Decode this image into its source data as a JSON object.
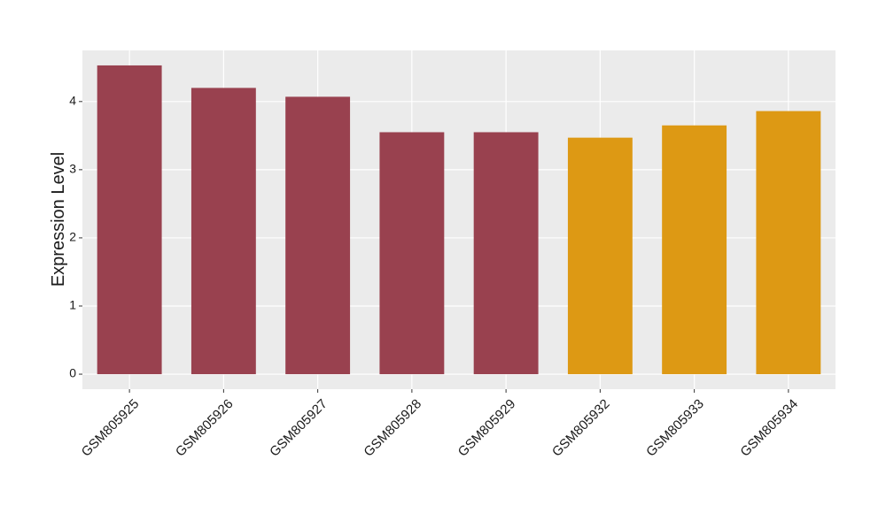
{
  "chart_data": {
    "type": "bar",
    "y_label": "Expression Level",
    "categories": [
      "GSM805925",
      "GSM805926",
      "GSM805927",
      "GSM805928",
      "GSM805929",
      "GSM805932",
      "GSM805933",
      "GSM805934"
    ],
    "values": [
      4.53,
      4.2,
      4.07,
      3.55,
      3.55,
      3.47,
      3.65,
      3.86
    ],
    "colors": [
      "#99414f",
      "#99414f",
      "#99414f",
      "#99414f",
      "#99414f",
      "#dd9914",
      "#dd9914",
      "#dd9914"
    ],
    "ylim": [
      -0.22,
      4.75
    ],
    "yticks": [
      0,
      1,
      2,
      3,
      4
    ],
    "grid": true
  }
}
